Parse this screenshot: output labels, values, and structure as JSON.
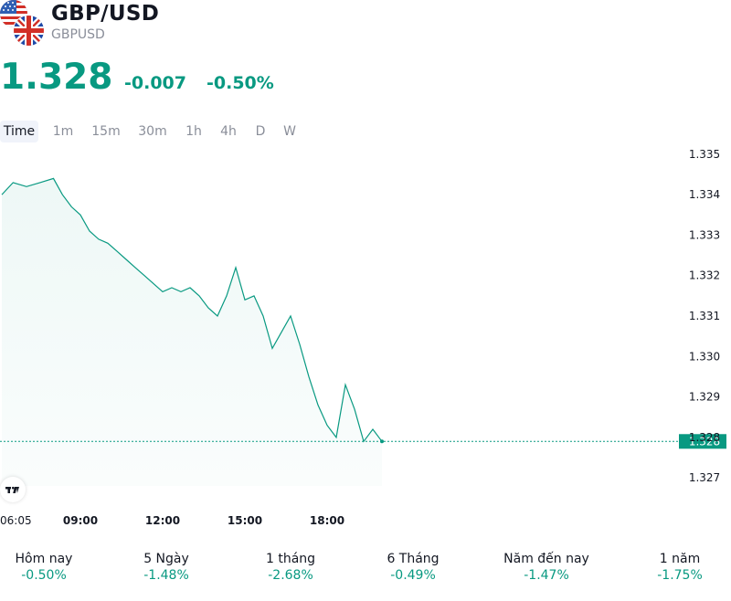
{
  "header": {
    "symbol": "GBP/USD",
    "ticker": "GBPUSD",
    "flags": [
      "us-flag-icon",
      "uk-flag-icon"
    ]
  },
  "quote": {
    "price": "1.328",
    "change": "-0.007",
    "change_percent": "-0.50%",
    "color": "#089981"
  },
  "timeframes": {
    "items": [
      "Time",
      "1m",
      "15m",
      "30m",
      "1h",
      "4h",
      "D",
      "W"
    ],
    "selected": "Time"
  },
  "chart_data": {
    "type": "area",
    "title": "",
    "xlabel": "",
    "ylabel": "",
    "x_ticks": [
      "06:05",
      "09:00",
      "12:00",
      "15:00",
      "18:00"
    ],
    "y_ticks": [
      "1.335",
      "1.334",
      "1.333",
      "1.332",
      "1.331",
      "1.330",
      "1.329",
      "1.328",
      "1.327"
    ],
    "ylim": [
      1.3268,
      1.3352
    ],
    "last_price_label": "1.328",
    "last_price_value": 1.3279,
    "line_color": "#089981",
    "grid": false,
    "series": [
      {
        "x": [
          "06:05",
          "06:30",
          "07:00",
          "07:30",
          "08:00",
          "08:20",
          "08:40",
          "09:00",
          "09:20",
          "09:40",
          "10:00",
          "10:20",
          "10:40",
          "11:00",
          "11:20",
          "11:40",
          "12:00",
          "12:20",
          "12:40",
          "13:00",
          "13:20",
          "13:40",
          "14:00",
          "14:20",
          "14:40",
          "15:00",
          "15:20",
          "15:40",
          "16:00",
          "16:20",
          "16:40",
          "17:00",
          "17:20",
          "17:40",
          "18:00",
          "18:20",
          "18:40",
          "19:00",
          "19:20",
          "19:40",
          "20:00"
        ],
        "values": [
          1.334,
          1.3343,
          1.3342,
          1.3343,
          1.3344,
          1.334,
          1.3337,
          1.3335,
          1.3331,
          1.3329,
          1.3328,
          1.3326,
          1.3324,
          1.3322,
          1.332,
          1.3318,
          1.3316,
          1.3317,
          1.3316,
          1.3317,
          1.3315,
          1.3312,
          1.331,
          1.3315,
          1.3322,
          1.3314,
          1.3315,
          1.331,
          1.3302,
          1.3306,
          1.331,
          1.3303,
          1.3295,
          1.3288,
          1.3283,
          1.328,
          1.3293,
          1.3287,
          1.3279,
          1.3282,
          1.3279
        ]
      }
    ]
  },
  "performance": [
    {
      "label": "Hôm nay",
      "value": "-0.50%"
    },
    {
      "label": "5 Ngày",
      "value": "-1.48%"
    },
    {
      "label": "1 tháng",
      "value": "-2.68%"
    },
    {
      "label": "6 Tháng",
      "value": "-0.49%"
    },
    {
      "label": "Năm đến nay",
      "value": "-1.47%"
    },
    {
      "label": "1 năm",
      "value": "-1.75%"
    }
  ]
}
